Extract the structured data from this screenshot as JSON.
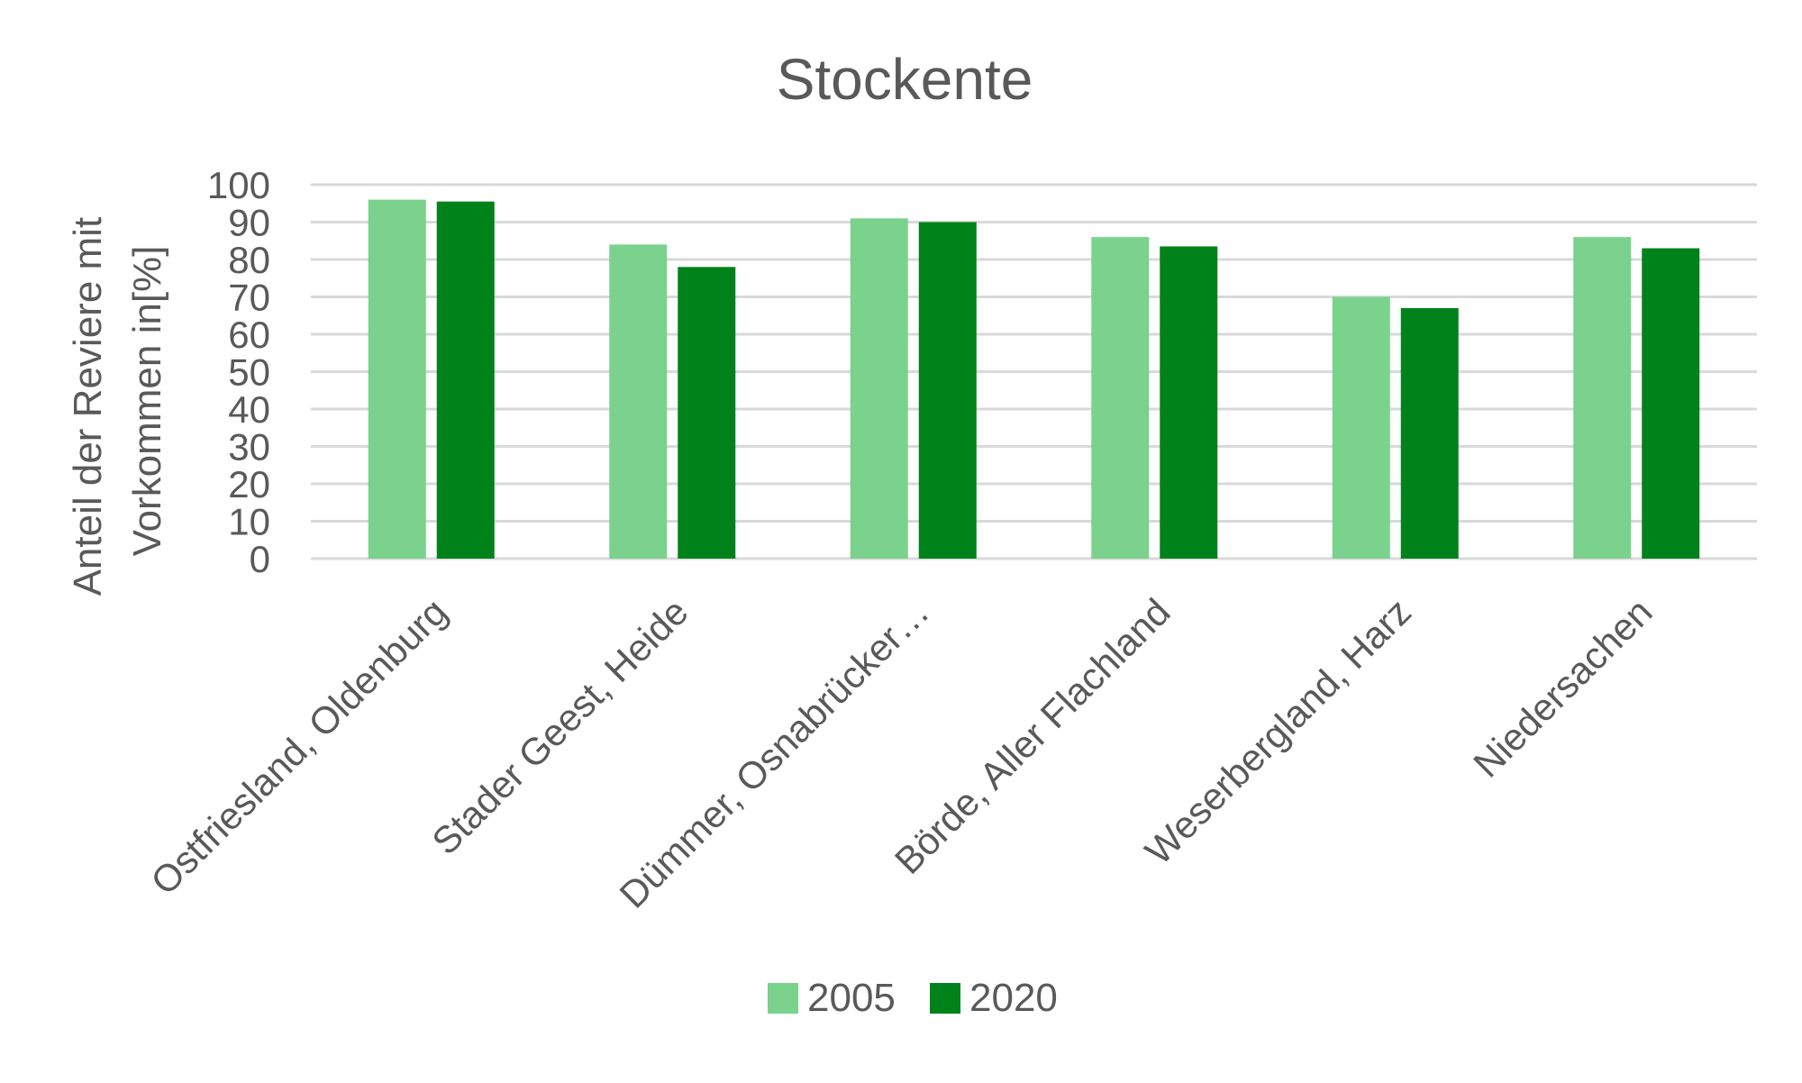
{
  "chart_data": {
    "type": "bar",
    "title": "Stockente",
    "ylabel_lines": [
      "Anteil der Reviere mit",
      "Vorkommen in[%]"
    ],
    "xlabel": "",
    "categories": [
      "Ostfriesland, Oldenburg",
      "Stader Geest, Heide",
      "Dümmer, Osnabrücker…",
      "Börde, Aller Flachland",
      "Weserbergland, Harz",
      "Niedersachen"
    ],
    "series": [
      {
        "name": "2005",
        "color": "#7ad28c",
        "values": [
          96,
          84,
          91,
          86,
          70,
          86
        ]
      },
      {
        "name": "2020",
        "color": "#00821a",
        "values": [
          95.5,
          78,
          90,
          83.5,
          67,
          83
        ]
      }
    ],
    "ylim": [
      0,
      100
    ],
    "yticks": [
      0,
      10,
      20,
      30,
      40,
      50,
      60,
      70,
      80,
      90,
      100
    ],
    "grid": true,
    "legend_position": "bottom"
  }
}
